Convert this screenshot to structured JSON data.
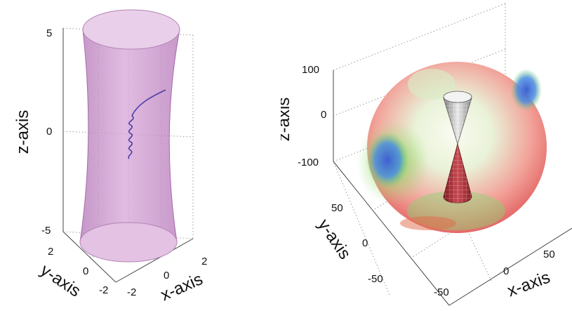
{
  "chart_data": [
    {
      "type": "surface3d",
      "xlabel": "x-axis",
      "ylabel": "y-axis",
      "zlabel": "z-axis",
      "xticks": [
        "-2",
        "0",
        "2"
      ],
      "yticks": [
        "2",
        "0",
        "-2"
      ],
      "zticks": [
        "5",
        "0",
        "-5"
      ],
      "xlim": [
        -2,
        2
      ],
      "ylim": [
        -2,
        2
      ],
      "zlim": [
        -5,
        5
      ],
      "surface": "hyperboloid",
      "surface_color": "#c58fc7",
      "curve_color": "#4a3fa8"
    },
    {
      "type": "surface3d",
      "xlabel": "x-axis",
      "ylabel": "y-axis",
      "zlabel": "z-axis",
      "xticks": [
        "-50",
        "0",
        "50"
      ],
      "yticks": [
        "50",
        "0",
        "-50"
      ],
      "zticks": [
        "100",
        "0",
        "-100"
      ],
      "xlim": [
        -100,
        100
      ],
      "ylim": [
        -100,
        100
      ],
      "zlim": [
        -100,
        100
      ],
      "surface": "sphere",
      "inner_surface": "double-cone",
      "colors": [
        "#e86a6a",
        "#9be07a",
        "#4d6bd4",
        "#f2f6ee"
      ]
    }
  ]
}
